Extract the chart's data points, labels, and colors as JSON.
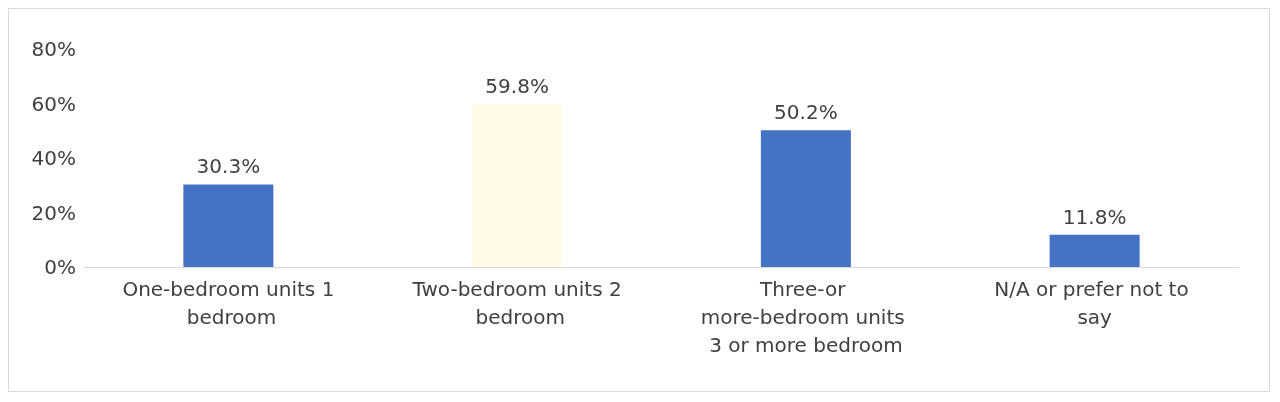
{
  "chart_data": {
    "type": "bar",
    "categories": [
      "One-bedroom units 1 bedroom",
      "Two-bedroom units 2 bedroom",
      "Three-or more-bedroom units 3 or more bedroom",
      "N/A or prefer not to say"
    ],
    "values": [
      30.3,
      59.8,
      50.2,
      11.8
    ],
    "colors": [
      "#4472c4",
      "#fff9e5",
      "#4472c4",
      "#4472c4"
    ],
    "value_labels": [
      "30.3%",
      "59.8%",
      "50.2%",
      "11.8%"
    ],
    "ylim": [
      0,
      80
    ],
    "yticks": [
      {
        "value": 0,
        "label": "0%"
      },
      {
        "value": 20,
        "label": "20%"
      },
      {
        "value": 40,
        "label": "40%"
      },
      {
        "value": 60,
        "label": "60%"
      },
      {
        "value": 80,
        "label": "80%"
      }
    ],
    "grid": false
  }
}
